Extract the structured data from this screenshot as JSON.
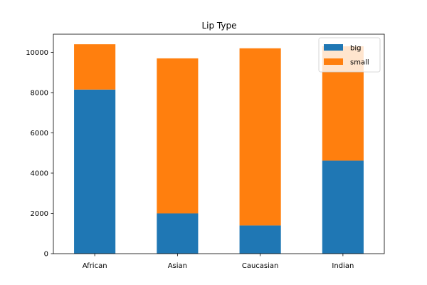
{
  "chart_data": {
    "type": "bar",
    "stacked": true,
    "title": "Lip Type",
    "xlabel": "",
    "ylabel": "",
    "categories": [
      "African",
      "Asian",
      "Caucasian",
      "Indian"
    ],
    "series": [
      {
        "name": "big",
        "color": "#1f77b4",
        "values": [
          8150,
          2000,
          1400,
          4620
        ]
      },
      {
        "name": "small",
        "color": "#ff7f0e",
        "values": [
          2250,
          7700,
          8800,
          5680
        ]
      }
    ],
    "ylim": [
      0,
      10900
    ],
    "yticks": [
      0,
      2000,
      4000,
      6000,
      8000,
      10000
    ],
    "ytick_labels": [
      "0",
      "2000",
      "4000",
      "6000",
      "8000",
      "10000"
    ],
    "grid": false,
    "legend_position": "top-right"
  }
}
